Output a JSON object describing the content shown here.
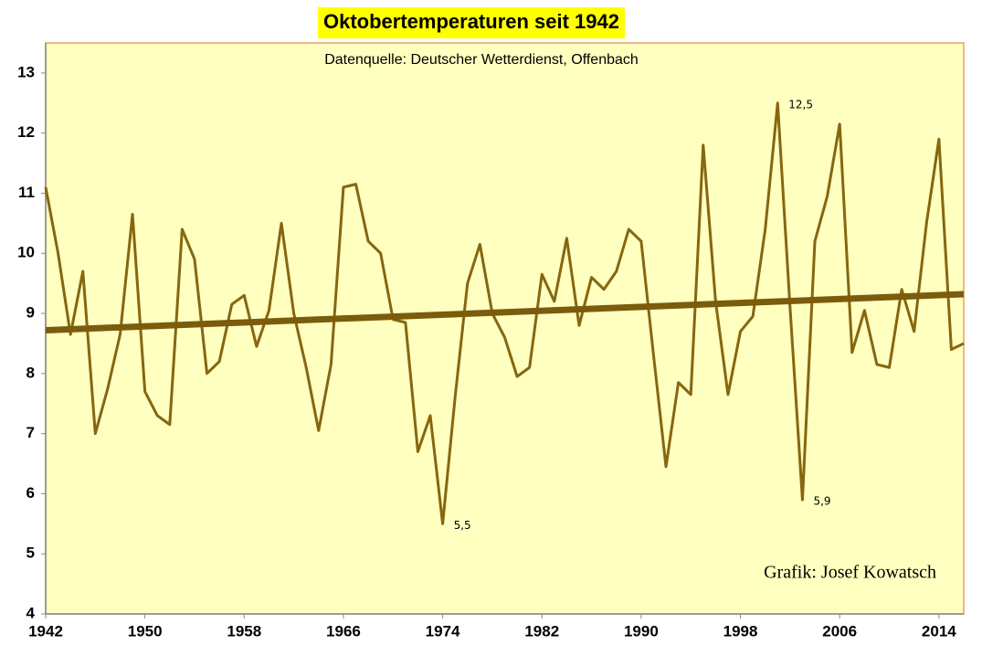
{
  "chart_data": {
    "type": "line",
    "title": "Oktobertemperaturen seit 1942",
    "subtitle": "Datenquelle: Deutscher Wetterdienst, Offenbach",
    "credit": "Grafik: Josef Kowatsch",
    "x": [
      1942,
      1943,
      1944,
      1945,
      1946,
      1947,
      1948,
      1949,
      1950,
      1951,
      1952,
      1953,
      1954,
      1955,
      1956,
      1957,
      1958,
      1959,
      1960,
      1961,
      1962,
      1963,
      1964,
      1965,
      1966,
      1967,
      1968,
      1969,
      1970,
      1971,
      1972,
      1973,
      1974,
      1975,
      1976,
      1977,
      1978,
      1979,
      1980,
      1981,
      1982,
      1983,
      1984,
      1985,
      1986,
      1987,
      1988,
      1989,
      1990,
      1991,
      1992,
      1993,
      1994,
      1995,
      1996,
      1997,
      1998,
      1999,
      2000,
      2001,
      2002,
      2003,
      2004,
      2005,
      2006,
      2007,
      2008,
      2009,
      2010,
      2011,
      2012,
      2013,
      2014,
      2015,
      2016
    ],
    "series": [
      {
        "color": "#86660f",
        "values": [
          11.1,
          10.0,
          8.65,
          9.7,
          7.0,
          7.75,
          8.65,
          10.65,
          7.7,
          7.3,
          7.15,
          10.4,
          9.9,
          8.0,
          8.2,
          9.15,
          9.3,
          8.45,
          9.05,
          10.5,
          9.0,
          8.1,
          7.05,
          8.15,
          11.1,
          11.15,
          10.2,
          10.0,
          8.9,
          8.85,
          6.7,
          7.3,
          5.5,
          7.6,
          9.5,
          10.15,
          9.0,
          8.6,
          7.95,
          8.1,
          9.65,
          9.2,
          10.25,
          8.8,
          9.6,
          9.4,
          9.7,
          10.4,
          10.2,
          8.3,
          6.45,
          7.85,
          7.65,
          11.8,
          9.2,
          7.65,
          8.7,
          8.95,
          10.4,
          12.5,
          9.1,
          5.9,
          10.2,
          10.95,
          12.15,
          8.35,
          9.05,
          8.15,
          8.1,
          9.4,
          8.7,
          10.5,
          11.9,
          8.4,
          8.5
        ]
      }
    ],
    "trend": {
      "color": "#7a5c0c",
      "x": [
        1942,
        2016
      ],
      "values": [
        8.72,
        9.32
      ]
    },
    "annotations": [
      {
        "x": 2001,
        "value": 12.5,
        "label": "12,5"
      },
      {
        "x": 1974,
        "value": 5.5,
        "label": "5,5"
      },
      {
        "x": 2003,
        "value": 5.9,
        "label": "5,9"
      }
    ],
    "xlim": [
      1942,
      2016
    ],
    "xticks": [
      1942,
      1950,
      1958,
      1966,
      1974,
      1982,
      1990,
      1998,
      2006,
      2014
    ],
    "ylim": [
      4,
      13.5
    ],
    "yticks": [
      4,
      5,
      6,
      7,
      8,
      9,
      10,
      11,
      12,
      13
    ],
    "grid": false
  }
}
